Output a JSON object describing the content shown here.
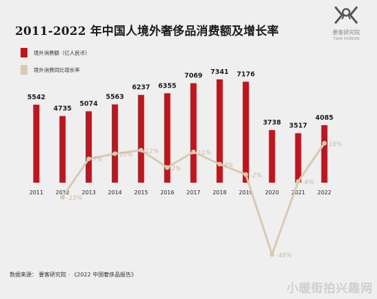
{
  "title": "2011-2022 年中国人境外奢侈品消费额及增长率",
  "logo": {
    "name": "要客研究院",
    "en": "Yaok Institute"
  },
  "source": "数据来源： 要客研究院 · 《2022 中国奢侈品报告》",
  "watermark": "小暖街拍兴趣网",
  "colors": {
    "bar": "#c0151c",
    "line": "#d8c9b1",
    "line_label": "#cbb89c"
  },
  "chart_data": {
    "type": "bar",
    "categories": [
      "2011",
      "2012",
      "2013",
      "2014",
      "2015",
      "2016",
      "2017",
      "2018",
      "2019",
      "2020",
      "2021",
      "2022"
    ],
    "series": [
      {
        "name": "境外消费额（亿人民币）",
        "type": "bar",
        "values": [
          5542,
          4735,
          5074,
          5563,
          6237,
          6355,
          7069,
          7341,
          7176,
          3738,
          3517,
          4085
        ],
        "labels": [
          "5542",
          "4735",
          "5074",
          "5563",
          "6237",
          "6355",
          "7069",
          "7341",
          "7176",
          "3738",
          "3517",
          "4085"
        ]
      },
      {
        "name": "境外消费同比增长率",
        "type": "line",
        "values": [
          null,
          -15,
          7,
          10,
          12,
          2,
          11,
          4,
          -2,
          -48,
          -6,
          16
        ],
        "labels": [
          "",
          "-15%",
          "7%",
          "10%",
          "12%",
          "2%",
          "11%",
          "4%",
          "-2%",
          "-48%",
          "-6%",
          "16%"
        ]
      }
    ],
    "legend_position": "top-left"
  }
}
